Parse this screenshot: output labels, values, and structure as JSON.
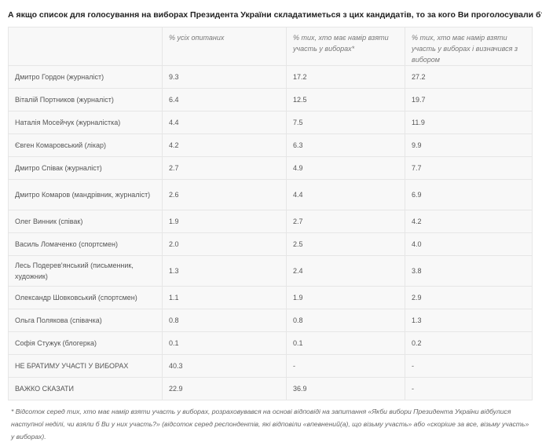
{
  "title": "А якщо список для голосування на виборах Президента України складатиметься з цих кандидатів, то за кого Ви проголосували б?",
  "table": {
    "headers": [
      "",
      "% усіх опитаних",
      "% тих, хто має намір взяти участь у виборах*",
      "% тих, хто має намір взяти участь у виборах і визначився з вибором"
    ],
    "rows": [
      [
        "Дмитро Гордон (журналіст)",
        "9.3",
        "17.2",
        "27.2"
      ],
      [
        "Віталій Портников (журналіст)",
        "6.4",
        "12.5",
        "19.7"
      ],
      [
        "Наталія Мосейчук (журналістка)",
        "4.4",
        "7.5",
        "11.9"
      ],
      [
        "Євген Комаровський (лікар)",
        "4.2",
        "6.3",
        "9.9"
      ],
      [
        "Дмитро Співак (журналіст)",
        "2.7",
        "4.9",
        "7.7"
      ],
      [
        "Дмитро Комаров (мандрівник, журналіст)",
        "2.6",
        "4.4",
        "6.9"
      ],
      [
        "Олег Винник (співак)",
        "1.9",
        "2.7",
        "4.2"
      ],
      [
        "Василь Ломаченко (спортсмен)",
        "2.0",
        "2.5",
        "4.0"
      ],
      [
        "Лесь Подерев'янський (письменник, художник)",
        "1.3",
        "2.4",
        "3.8"
      ],
      [
        "Олександр Шовковський (спортсмен)",
        "1.1",
        "1.9",
        "2.9"
      ],
      [
        "Ольга Полякова (співачка)",
        "0.8",
        "0.8",
        "1.3"
      ],
      [
        "Софія Стужук (блогерка)",
        "0.1",
        "0.1",
        "0.2"
      ],
      [
        "НЕ БРАТИМУ УЧАСТІ У ВИБОРАХ",
        "40.3",
        "-",
        "-"
      ],
      [
        "ВАЖКО СКАЗАТИ",
        "22.9",
        "36.9",
        "-"
      ]
    ]
  },
  "footnote": "* Відсоток серед тих, хто має намір взяти участь у виборах, розраховувався на основі відповіді на запитання «Якби вибори  Президента України відбулися наступної  неділі, чи взяли б Ви у них участь?» (відсоток серед респондентів, які відповіли «впевнений(а), що візьму участь» або «скоріше за все, візьму участь» у виборах)."
}
